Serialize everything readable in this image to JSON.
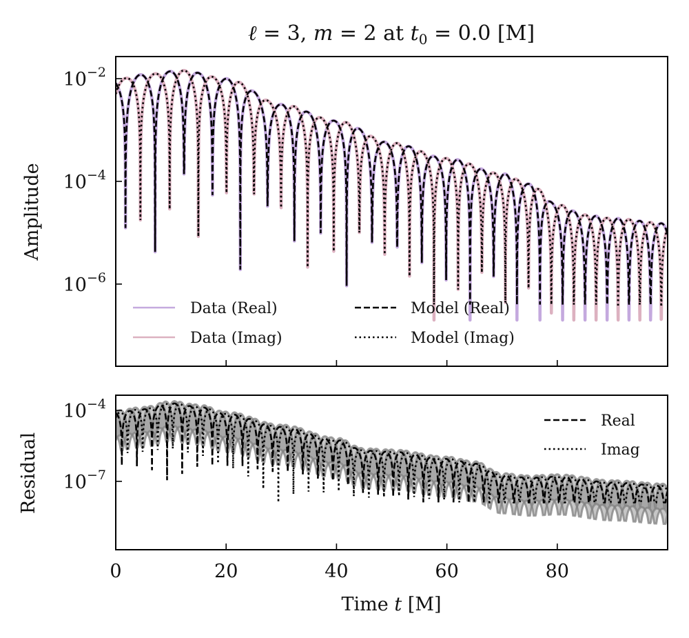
{
  "chart_data": [
    {
      "panel": "amplitude",
      "type": "line",
      "title": "ℓ = 3, m = 2 at t₀ = 0.0 [M]",
      "title_parts": {
        "ell": "ℓ",
        "l_value": "3",
        "m_symbol": "m",
        "m_value": "2",
        "at": "at",
        "t0": "t",
        "t0_sub": "0",
        "t0_value": "0.0",
        "unit": "[M]"
      },
      "xlabel": "",
      "ylabel": "Amplitude",
      "yscale": "log",
      "xlim": [
        0,
        100
      ],
      "ylim_log10": [
        -7.6,
        -1.57
      ],
      "yticks": [
        {
          "value": 0.01,
          "label_base": "10",
          "label_exp": "−2"
        },
        {
          "value": 0.0001,
          "label_base": "10",
          "label_exp": "−4"
        },
        {
          "value": 1e-06,
          "label_base": "10",
          "label_exp": "−6"
        }
      ],
      "xticks": [
        0,
        20,
        40,
        60,
        80
      ],
      "signal": {
        "omega": 0.575,
        "chirp": 0.0012,
        "phase_real": 0.55,
        "phase_imag": -1.02,
        "envelope_t": [
          0,
          5,
          12,
          20,
          30,
          40,
          50,
          60,
          70,
          75,
          80,
          85,
          90,
          100
        ],
        "envelope_log10": [
          -2.02,
          -1.92,
          -1.84,
          -2.0,
          -2.5,
          -2.82,
          -3.25,
          -3.55,
          -3.85,
          -4.05,
          -4.45,
          -4.65,
          -4.72,
          -4.82
        ]
      },
      "series": [
        {
          "name": "Data (Real)",
          "component": "real",
          "style": "solid",
          "color": "#c4a9de"
        },
        {
          "name": "Data (Imag)",
          "component": "imag",
          "style": "solid",
          "color": "#dcb1c0"
        },
        {
          "name": "Model (Real)",
          "component": "real",
          "style": "dashed",
          "color": "#000000"
        },
        {
          "name": "Model (Imag)",
          "component": "imag",
          "style": "dotted",
          "color": "#000000"
        }
      ],
      "legend": {
        "placement": "lower-left",
        "columns": 2
      }
    },
    {
      "panel": "residual",
      "type": "line",
      "xlabel": "Time t [M]",
      "xlabel_parts": {
        "word": "Time",
        "var": "t",
        "unit": "[M]"
      },
      "ylabel": "Residual",
      "yscale": "log",
      "xlim": [
        0,
        100
      ],
      "ylim_log10": [
        -9.89,
        -3.36
      ],
      "yticks": [
        {
          "value": 0.0001,
          "label_base": "10",
          "label_exp": "−4"
        },
        {
          "value": 1e-07,
          "label_base": "10",
          "label_exp": "−7"
        }
      ],
      "xticks": [
        {
          "value": 0,
          "label": "0"
        },
        {
          "value": 20,
          "label": "20"
        },
        {
          "value": 40,
          "label": "40"
        },
        {
          "value": 60,
          "label": "60"
        },
        {
          "value": 80,
          "label": "80"
        }
      ],
      "signal": {
        "omega": 1.15,
        "phase_real": 0.3,
        "phase_imag": -0.9,
        "envelope_t": [
          0,
          5,
          10,
          15,
          20,
          30,
          40,
          45,
          50,
          60,
          65,
          70,
          75,
          80,
          90,
          100
        ],
        "envelope_log10": [
          -4.1,
          -3.95,
          -3.7,
          -3.85,
          -4.15,
          -4.7,
          -5.25,
          -5.7,
          -5.75,
          -6.05,
          -6.25,
          -6.75,
          -6.85,
          -6.8,
          -7.05,
          -7.2
        ],
        "band_log10_width": 1.6
      },
      "series": [
        {
          "name": "Real",
          "component": "real",
          "style": "dashed",
          "color": "#000000"
        },
        {
          "name": "Imag",
          "component": "imag",
          "style": "dotted",
          "color": "#000000"
        }
      ],
      "band_color": "#808080",
      "legend": {
        "placement": "upper-right",
        "columns": 1
      }
    }
  ]
}
